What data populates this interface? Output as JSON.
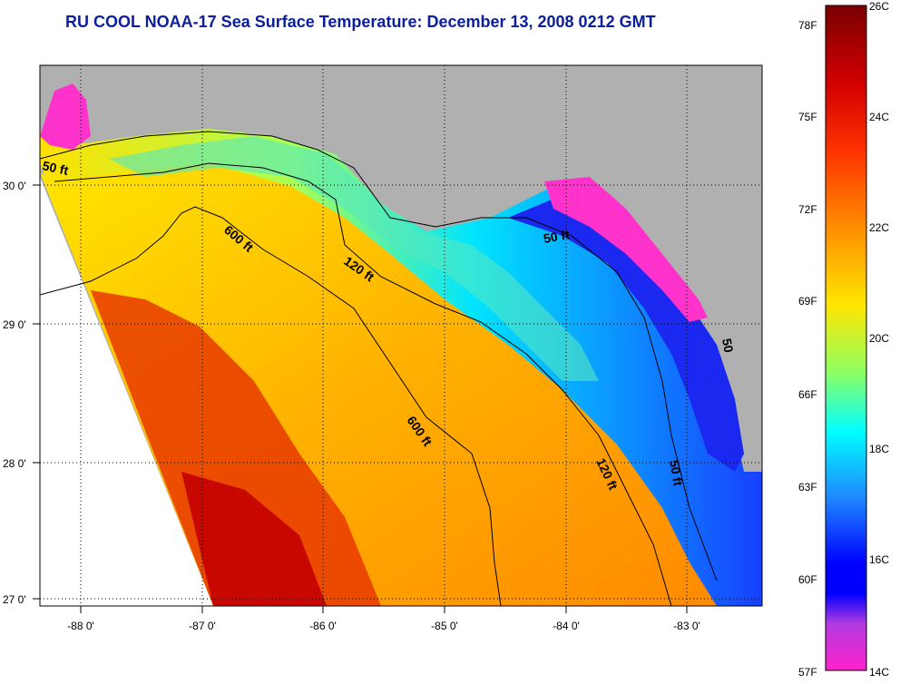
{
  "title": "RU COOL  NOAA-17  Sea Surface Temperature:  December 13, 2008 0212 GMT",
  "map": {
    "lon_labels": [
      "-88 0'",
      "-87 0'",
      "-86 0'",
      "-85 0'",
      "-84 0'",
      "-83 0'"
    ],
    "lat_labels": [
      "30 0'",
      "29 0'",
      "28 0'",
      "27 0'"
    ],
    "lon_range": [
      -88.3,
      -82.4
    ],
    "lat_range": [
      26.98,
      30.86
    ],
    "isobath_labels": [
      "50 ft",
      "600 ft",
      "120 ft",
      "50 ft",
      "600 ft",
      "120 ft",
      "50 ft",
      "50"
    ],
    "colors": {
      "land": "#b0b0b0",
      "coastal_cold": "#ff33cc",
      "shelf_cold": "#1a1aff",
      "mid": "#ffd200",
      "warm": "#ff5a00",
      "hot": "#c00000"
    }
  },
  "colorbar": {
    "fahrenheit_labels": [
      "78F",
      "75F",
      "72F",
      "69F",
      "66F",
      "63F",
      "60F",
      "57F"
    ],
    "celsius_labels": [
      "26C",
      "24C",
      "22C",
      "20C",
      "18C",
      "16C",
      "14C"
    ]
  }
}
